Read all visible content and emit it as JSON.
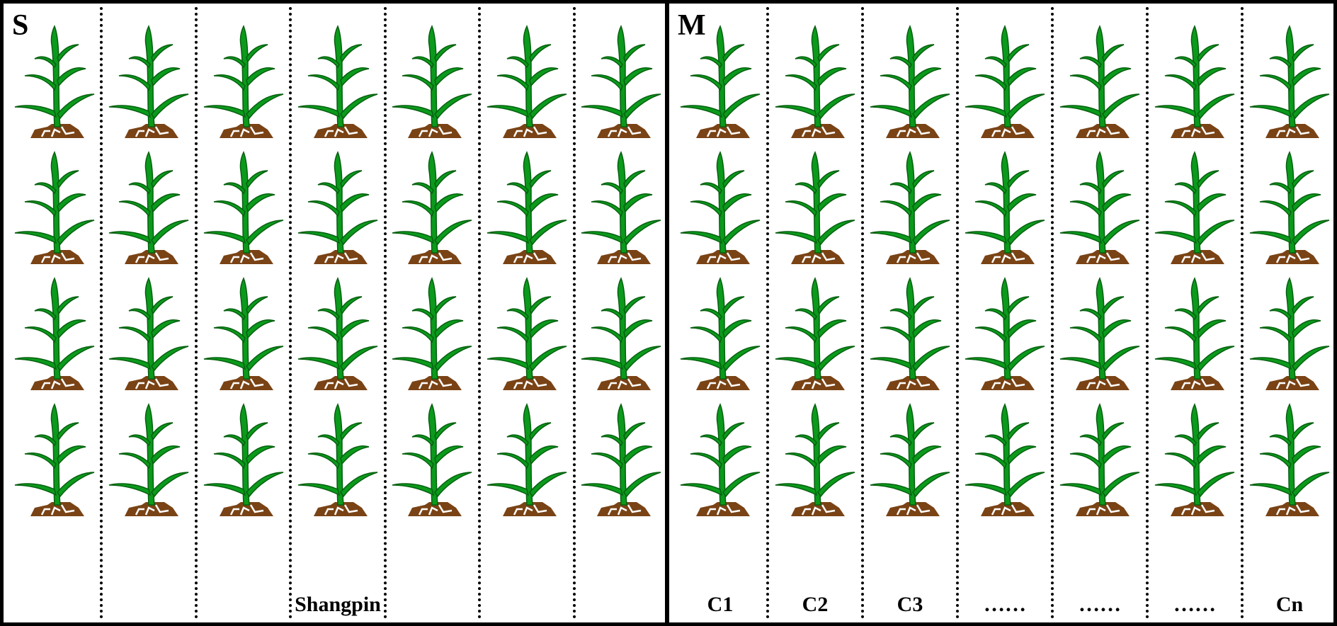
{
  "panels": [
    {
      "id": "S",
      "label": "S",
      "columns": 7,
      "rows": 4,
      "labels": [
        "",
        "",
        "",
        "Shangpin",
        "",
        "",
        ""
      ]
    },
    {
      "id": "M",
      "label": "M",
      "columns": 7,
      "rows": 4,
      "labels": [
        "C1",
        "C2",
        "C3",
        "……",
        "……",
        "……",
        "Cn"
      ]
    }
  ],
  "icons": {
    "plant": "maize-plant-icon"
  },
  "colors": {
    "leaf": "#0b9a1c",
    "leaf_stroke": "#06600f",
    "soil": "#7a4315",
    "border": "#000000"
  }
}
